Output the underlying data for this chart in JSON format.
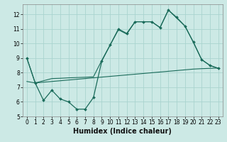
{
  "title": "",
  "xlabel": "Humidex (Indice chaleur)",
  "ylabel": "",
  "background_color": "#cce9e5",
  "grid_color": "#aad4cf",
  "line_color": "#1a6b5a",
  "xlim": [
    -0.5,
    23.5
  ],
  "ylim": [
    5,
    12.7
  ],
  "xticks": [
    0,
    1,
    2,
    3,
    4,
    5,
    6,
    7,
    8,
    9,
    10,
    11,
    12,
    13,
    14,
    15,
    16,
    17,
    18,
    19,
    20,
    21,
    22,
    23
  ],
  "yticks": [
    5,
    6,
    7,
    8,
    9,
    10,
    11,
    12
  ],
  "line1_x": [
    0,
    1,
    2,
    3,
    4,
    5,
    6,
    7,
    8,
    9,
    10,
    11,
    12,
    13,
    14,
    15,
    16,
    17,
    18,
    19,
    20,
    21,
    22,
    23
  ],
  "line1_y": [
    9.0,
    7.3,
    6.1,
    6.8,
    6.2,
    6.0,
    5.5,
    5.5,
    6.3,
    8.8,
    9.9,
    11.0,
    10.7,
    11.5,
    11.5,
    11.5,
    11.1,
    12.3,
    11.8,
    11.2,
    10.1,
    8.9,
    8.5,
    8.3
  ],
  "line2_x": [
    0,
    1,
    2,
    3,
    4,
    5,
    6,
    7,
    8,
    9,
    10,
    11,
    12,
    13,
    14,
    15,
    16,
    17,
    18,
    19,
    20,
    21,
    22,
    23
  ],
  "line2_y": [
    9.0,
    7.3,
    7.45,
    7.6,
    7.62,
    7.65,
    7.67,
    7.69,
    7.72,
    8.85,
    9.9,
    10.95,
    10.65,
    11.5,
    11.5,
    11.5,
    11.1,
    12.3,
    11.75,
    11.2,
    10.1,
    8.9,
    8.5,
    8.3
  ],
  "line3_x": [
    0,
    1,
    2,
    3,
    4,
    5,
    6,
    7,
    8,
    9,
    10,
    11,
    12,
    13,
    14,
    15,
    16,
    17,
    18,
    19,
    20,
    21,
    22,
    23
  ],
  "line3_y": [
    7.4,
    7.3,
    7.35,
    7.4,
    7.45,
    7.5,
    7.55,
    7.6,
    7.65,
    7.7,
    7.75,
    7.8,
    7.85,
    7.9,
    7.95,
    8.0,
    8.05,
    8.1,
    8.15,
    8.2,
    8.25,
    8.28,
    8.3,
    8.32
  ],
  "fontsize_label": 7,
  "fontsize_tick": 5.5
}
